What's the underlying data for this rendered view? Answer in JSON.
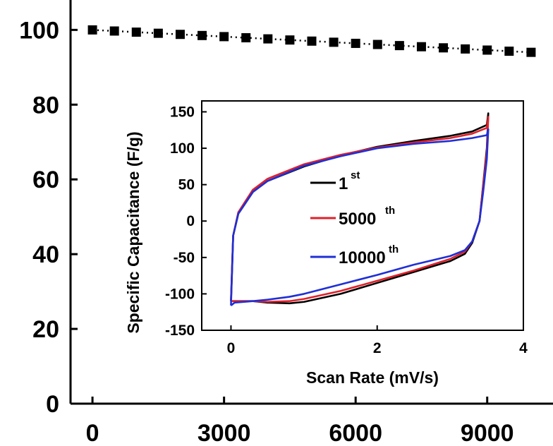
{
  "chart_data": [
    {
      "type": "scatter",
      "title": "",
      "xlabel": "",
      "ylabel": "",
      "xlim": [
        -500,
        10500
      ],
      "ylim": [
        0,
        108
      ],
      "x_ticks": [
        "0",
        "3000",
        "6000",
        "9000"
      ],
      "y_ticks": [
        "0",
        "20",
        "40",
        "60",
        "80",
        "100"
      ],
      "series": [
        {
          "marker": "square",
          "line": "dotted",
          "color": "#000000",
          "x": [
            0,
            500,
            1000,
            1500,
            2000,
            2500,
            3000,
            3500,
            4000,
            4500,
            5000,
            5500,
            6000,
            6500,
            7000,
            7500,
            8000,
            8500,
            9000,
            9500,
            10000
          ],
          "y": [
            100,
            99.7,
            99.4,
            99.1,
            98.8,
            98.5,
            98.2,
            97.9,
            97.6,
            97.3,
            97.0,
            96.7,
            96.4,
            96.1,
            95.8,
            95.5,
            95.2,
            94.9,
            94.6,
            94.3,
            94.0
          ]
        }
      ]
    },
    {
      "type": "line",
      "title": "",
      "xlabel": "Scan Rate (mV/s)",
      "ylabel": "Specific Capacitance (F/g)",
      "xlim": [
        -0.4,
        4
      ],
      "ylim": [
        -150,
        165
      ],
      "x_ticks": [
        "0",
        "2",
        "4"
      ],
      "y_ticks": [
        "150",
        "100",
        "50",
        "0",
        "-50",
        "-100",
        "-150"
      ],
      "legend": {
        "placement": "center",
        "entries": [
          {
            "main": "1",
            "sup": "st",
            "color": "#000000"
          },
          {
            "main": "5000",
            "sup": "th",
            "color": "#e0202a"
          },
          {
            "main": "10000",
            "sup": "th",
            "color": "#1f2fd6"
          }
        ]
      },
      "series": [
        {
          "name": "1st",
          "color": "#000000",
          "x": [
            0,
            0.03,
            0.1,
            0.3,
            0.5,
            1.0,
            1.5,
            2.0,
            2.5,
            3.0,
            3.3,
            3.5,
            3.52,
            3.5,
            3.45,
            3.4,
            3.3,
            3.2,
            3.0,
            2.5,
            2.0,
            1.5,
            1.0,
            0.8,
            0.5,
            0.3,
            0.05,
            0
          ],
          "y": [
            -110,
            -20,
            10,
            40,
            55,
            75,
            90,
            102,
            110,
            117,
            123,
            132,
            148,
            100,
            50,
            0,
            -30,
            -45,
            -55,
            -70,
            -85,
            -100,
            -111,
            -113,
            -112,
            -110,
            -110,
            -110
          ]
        },
        {
          "name": "5000th",
          "color": "#e0202a",
          "x": [
            0,
            0.03,
            0.1,
            0.3,
            0.5,
            1.0,
            1.5,
            2.0,
            2.5,
            3.0,
            3.3,
            3.5,
            3.52,
            3.5,
            3.45,
            3.4,
            3.3,
            3.2,
            3.0,
            2.5,
            2.0,
            1.5,
            1.0,
            0.8,
            0.5,
            0.3,
            0.05,
            0
          ],
          "y": [
            -110,
            -20,
            12,
            43,
            58,
            78,
            91,
            101,
            108,
            114,
            120,
            128,
            143,
            95,
            48,
            0,
            -28,
            -42,
            -52,
            -68,
            -82,
            -96,
            -107,
            -110,
            -111,
            -110,
            -110,
            -110
          ]
        },
        {
          "name": "10000th",
          "color": "#1f2fd6",
          "x": [
            0,
            0.03,
            0.1,
            0.3,
            0.5,
            1.0,
            1.5,
            2.0,
            2.5,
            3.0,
            3.3,
            3.5,
            3.52,
            3.5,
            3.45,
            3.4,
            3.3,
            3.2,
            3.0,
            2.5,
            2.0,
            1.5,
            1.0,
            0.8,
            0.5,
            0.3,
            0.05,
            0
          ],
          "y": [
            -116,
            -20,
            10,
            40,
            55,
            76,
            89,
            100,
            106,
            110,
            114,
            118,
            126,
            85,
            40,
            0,
            -28,
            -40,
            -48,
            -60,
            -74,
            -87,
            -100,
            -104,
            -108,
            -110,
            -112,
            -116
          ]
        }
      ]
    }
  ]
}
